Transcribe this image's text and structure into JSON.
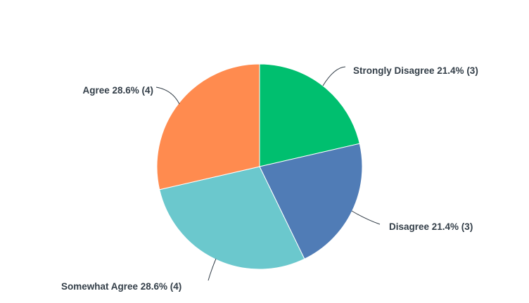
{
  "chart_data": {
    "type": "pie",
    "title": "",
    "start": "top",
    "direction": "clockwise",
    "slices": [
      {
        "label": "Strongly Disagree",
        "percent": 21.4,
        "count": 3,
        "color": "#00bf6f",
        "text": "Strongly Disagree 21.4% (3)"
      },
      {
        "label": "Disagree",
        "percent": 21.4,
        "count": 3,
        "color": "#507cb6",
        "text": "Disagree 21.4% (3)"
      },
      {
        "label": "Somewhat Agree",
        "percent": 28.6,
        "count": 4,
        "color": "#6bc8cd",
        "text": "Somewhat Agree 28.6% (4)"
      },
      {
        "label": "Agree",
        "percent": 28.6,
        "count": 4,
        "color": "#ff8b4f",
        "text": "Agree 28.6% (4)"
      }
    ]
  }
}
